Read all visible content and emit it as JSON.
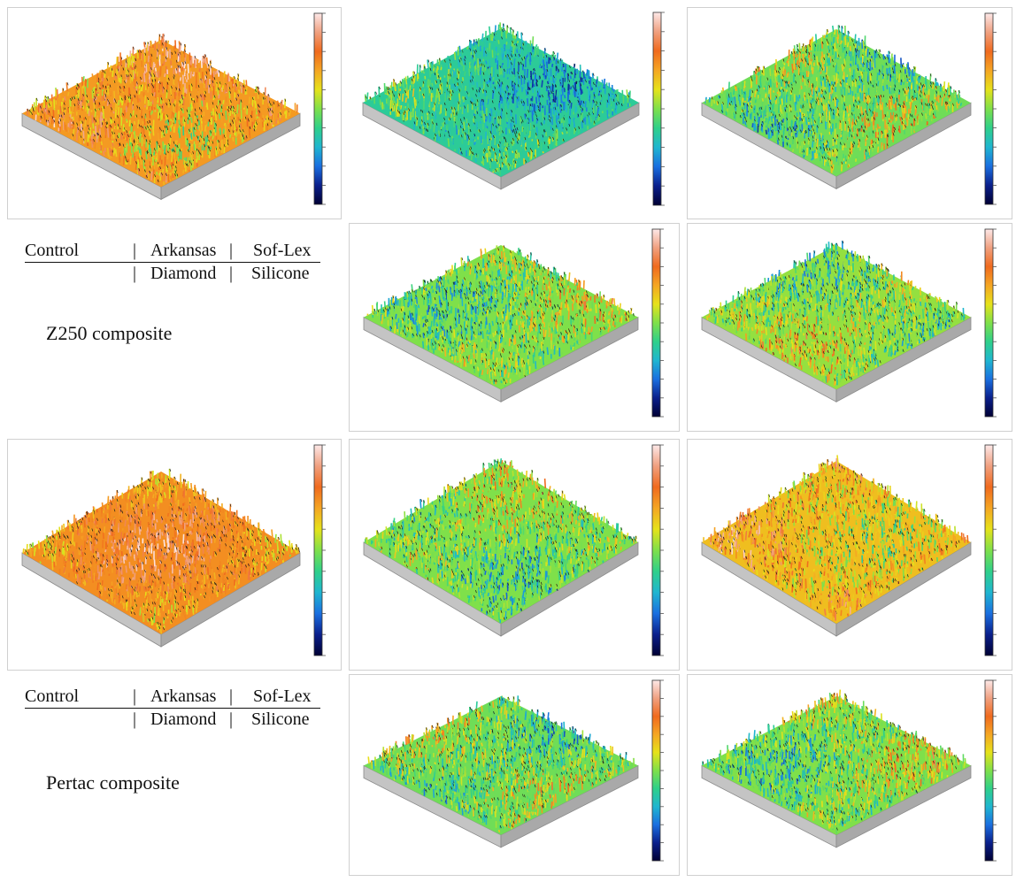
{
  "palette": {
    "colorbar_stops": [
      "#000033",
      "#0a1f8c",
      "#1a6fe0",
      "#1fb6d0",
      "#2fd08a",
      "#7fe04a",
      "#e6e21a",
      "#f5a623",
      "#f06a1e",
      "#f0a080",
      "#fde8e8"
    ],
    "surface_side": "#c4c4c4",
    "surface_side_dark": "#a9a9a9"
  },
  "panels": [
    {
      "id": "z250-control",
      "mean": 0.72,
      "spread": 0.18,
      "style": "pyramid"
    },
    {
      "id": "z250-arkansas",
      "mean": 0.38,
      "spread": 0.14,
      "style": "flat"
    },
    {
      "id": "z250-sof-lex",
      "mean": 0.48,
      "spread": 0.2,
      "style": "flat"
    },
    {
      "id": "z250-diamond",
      "mean": 0.5,
      "spread": 0.2,
      "style": "flat"
    },
    {
      "id": "z250-silicone",
      "mean": 0.52,
      "spread": 0.2,
      "style": "flat"
    },
    {
      "id": "pertac-control",
      "mean": 0.74,
      "spread": 0.12,
      "style": "pyramid"
    },
    {
      "id": "pertac-arkansas",
      "mean": 0.5,
      "spread": 0.2,
      "style": "flat"
    },
    {
      "id": "pertac-sof-lex",
      "mean": 0.66,
      "spread": 0.18,
      "style": "flat"
    },
    {
      "id": "pertac-diamond",
      "mean": 0.48,
      "spread": 0.2,
      "style": "flat"
    },
    {
      "id": "pertac-silicone",
      "mean": 0.5,
      "spread": 0.2,
      "style": "flat"
    }
  ],
  "captions": [
    {
      "top": {
        "control": "Control",
        "sep1": "|",
        "arkansas": "Arkansas",
        "sep2": "|",
        "sof_lex": "Sof-Lex"
      },
      "bottom": {
        "sep1": "|",
        "diamond": "Diamond",
        "sep2": "|",
        "silicone": "Silicone"
      },
      "composite": "Z250 composite"
    },
    {
      "top": {
        "control": "Control",
        "sep1": "|",
        "arkansas": "Arkansas",
        "sep2": "|",
        "sof_lex": "Sof-Lex"
      },
      "bottom": {
        "sep1": "|",
        "diamond": "Diamond",
        "sep2": "|",
        "silicone": "Silicone"
      },
      "composite": "Pertac composite"
    }
  ]
}
